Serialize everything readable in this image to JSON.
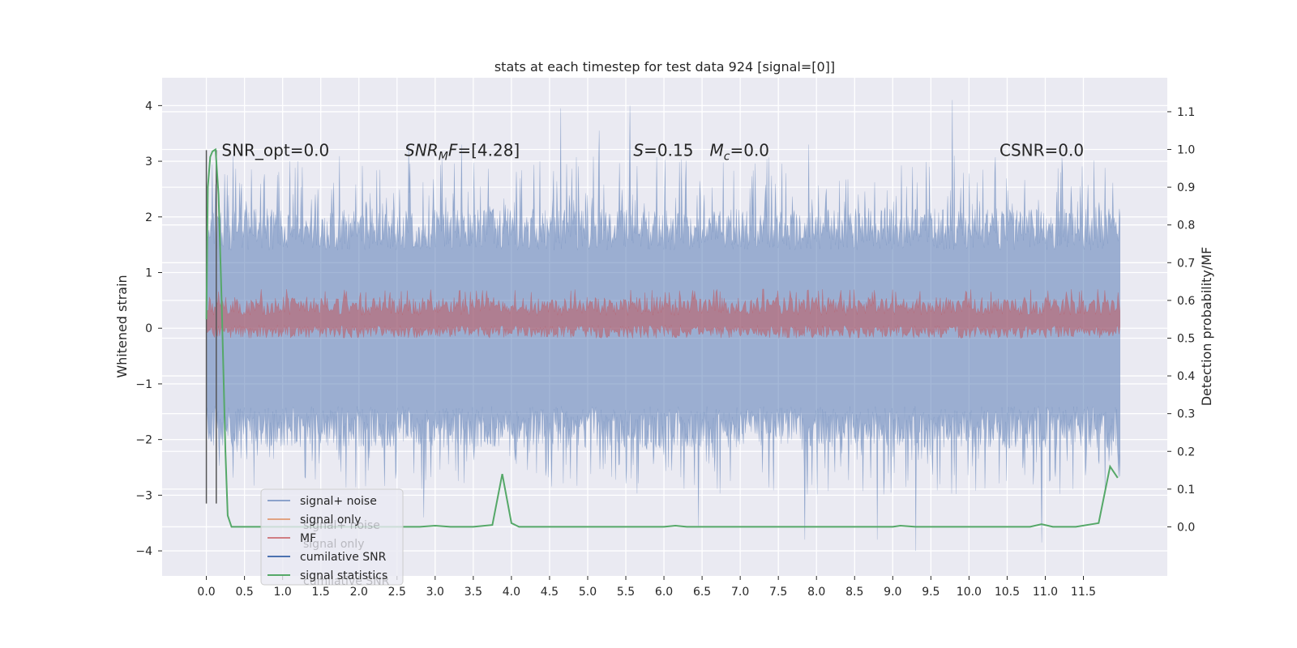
{
  "chart_data": {
    "type": "line",
    "title": "stats at each timestep for test data 924 [signal=[0]]",
    "ylabel": "Whitened strain",
    "y2label": "Detection probability/MF",
    "xlim": [
      -0.58,
      12.6
    ],
    "ylim": [
      -4.45,
      4.5
    ],
    "y2lim": [
      -0.13,
      1.19
    ],
    "xticks": [
      0.0,
      0.5,
      1.0,
      1.5,
      2.0,
      2.5,
      3.0,
      3.5,
      4.0,
      4.5,
      5.0,
      5.5,
      6.0,
      6.5,
      7.0,
      7.5,
      8.0,
      8.5,
      9.0,
      9.5,
      10.0,
      10.5,
      11.0,
      11.5
    ],
    "xtick_labels": [
      "0.0",
      "0.5",
      "1.0",
      "1.5",
      "2.0",
      "2.5",
      "3.0",
      "3.5",
      "4.0",
      "4.5",
      "5.0",
      "5.5",
      "6.0",
      "6.5",
      "7.0",
      "7.5",
      "8.0",
      "8.5",
      "9.0",
      "9.5",
      "10.0",
      "10.5",
      "11.0",
      "11.5"
    ],
    "yticks": [
      -4,
      -3,
      -2,
      -1,
      0,
      1,
      2,
      3,
      4
    ],
    "ytick_labels": [
      "−4",
      "−3",
      "−2",
      "−1",
      "0",
      "1",
      "2",
      "3",
      "4"
    ],
    "y2ticks": [
      0.0,
      0.1,
      0.2,
      0.3,
      0.4,
      0.5,
      0.6,
      0.7,
      0.8,
      0.9,
      1.0,
      1.1
    ],
    "y2tick_labels": [
      "0.0",
      "0.1",
      "0.2",
      "0.3",
      "0.4",
      "0.5",
      "0.6",
      "0.7",
      "0.8",
      "0.9",
      "1.0",
      "1.1"
    ],
    "grid": true,
    "background": "#eaeaf2",
    "legend_location": "lower left",
    "annotations": [
      {
        "text": "SNR_opt=0.0",
        "x": 0.2,
        "y": 3.2
      },
      {
        "text": "SNR_MF=[4.28]",
        "x": 2.6,
        "y": 3.2
      },
      {
        "text": "S=0.15  M_c=0.0",
        "x": 5.6,
        "y": 3.2
      },
      {
        "text": "CSNR=0.0",
        "x": 10.4,
        "y": 3.2
      }
    ],
    "annotation_parts": {
      "snr_opt": "SNR_opt=0.0",
      "snr_mf_main": "SNR",
      "snr_mf_sub": "M",
      "snr_mf_tail": "F",
      "snr_mf_value": "=[4.28]",
      "s_var": "S",
      "s_value": "=0.15",
      "mc_var": "M",
      "mc_sub": "c",
      "mc_value": "=0.0",
      "csnr": "CSNR=0.0"
    },
    "series": [
      {
        "name": "signal+ noise",
        "axis": "left",
        "color": "#4c72b0",
        "alpha": 0.5,
        "x_range": [
          0.0,
          11.98
        ],
        "approx_envelope": {
          "typical_max": 2.0,
          "typical_min": -2.0,
          "peak_max": 4.1,
          "peak_min": -4.0
        },
        "spikes": [
          {
            "x": 0.35,
            "y": 3.1
          },
          {
            "x": 1.2,
            "y": 3.0
          },
          {
            "x": 2.65,
            "y": 3.3
          },
          {
            "x": 3.35,
            "y": 3.3
          },
          {
            "x": 4.65,
            "y": 3.95
          },
          {
            "x": 5.15,
            "y": 3.55
          },
          {
            "x": 5.55,
            "y": 4.0
          },
          {
            "x": 7.9,
            "y": 3.3
          },
          {
            "x": 9.78,
            "y": 4.1
          },
          {
            "x": 11.2,
            "y": 2.8
          },
          {
            "x": 2.85,
            "y": -3.4
          },
          {
            "x": 6.45,
            "y": -3.55
          },
          {
            "x": 7.85,
            "y": -3.8
          },
          {
            "x": 8.8,
            "y": -3.8
          },
          {
            "x": 9.3,
            "y": -4.0
          },
          {
            "x": 10.95,
            "y": -3.85
          }
        ]
      },
      {
        "name": "signal only",
        "axis": "left",
        "color": "#dd8452",
        "values_note": "flat at 0"
      },
      {
        "name": "MF",
        "axis": "right",
        "color": "#c44e52",
        "alpha": 0.5,
        "x_range": [
          0.0,
          11.98
        ],
        "approx_band": [
          0.48,
          0.6
        ],
        "peak": 0.63
      },
      {
        "name": "cumilative SNR",
        "axis": "right",
        "color": "#4c72b0",
        "values_note": "not visible"
      },
      {
        "name": "signal statistics",
        "axis": "right",
        "color": "#55a868",
        "x": [
          0.0,
          0.02,
          0.05,
          0.08,
          0.12,
          0.16,
          0.2,
          0.25,
          0.28,
          0.33,
          0.5,
          1.0,
          2.0,
          2.8,
          3.0,
          3.2,
          3.5,
          3.75,
          3.88,
          4.0,
          4.1,
          4.5,
          5.0,
          6.0,
          6.15,
          6.3,
          7.0,
          8.0,
          9.0,
          9.1,
          9.3,
          10.0,
          10.5,
          10.8,
          10.95,
          11.1,
          11.4,
          11.7,
          11.85,
          11.95
        ],
        "y": [
          0.55,
          0.9,
          0.98,
          0.995,
          1.0,
          0.88,
          0.6,
          0.2,
          0.03,
          0.0,
          0.0,
          0.0,
          0.0,
          0.0,
          0.003,
          0.0,
          0.0,
          0.005,
          0.14,
          0.01,
          0.0,
          0.0,
          0.0,
          0.0,
          0.003,
          0.0,
          0.0,
          0.0,
          0.0,
          0.003,
          0.0,
          0.0,
          0.0,
          0.0,
          0.007,
          0.0,
          0.0,
          0.01,
          0.16,
          0.13
        ]
      }
    ],
    "vertical_markers": [
      {
        "x": 0.0,
        "y_range": [
          -3.15,
          3.2
        ],
        "color": "#555555"
      },
      {
        "x": 0.13,
        "y_range": [
          -3.15,
          3.2
        ],
        "color": "#555555"
      }
    ],
    "legend_labels": [
      "signal+ noise",
      "signal only",
      "MF",
      "cumilative SNR",
      "signal statistics"
    ],
    "legend_ghost_labels": [
      "signal+ noise",
      "signal only",
      "cumilative SNR"
    ]
  }
}
